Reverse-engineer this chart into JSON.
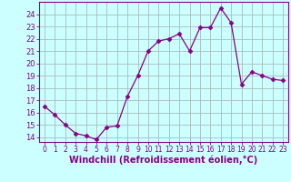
{
  "x": [
    0,
    1,
    2,
    3,
    4,
    5,
    6,
    7,
    8,
    9,
    10,
    11,
    12,
    13,
    14,
    15,
    16,
    17,
    18,
    19,
    20,
    21,
    22,
    23
  ],
  "y": [
    16.5,
    15.8,
    15.0,
    14.3,
    14.1,
    13.8,
    14.8,
    14.9,
    17.3,
    19.0,
    21.0,
    21.8,
    22.0,
    22.4,
    21.0,
    22.9,
    22.9,
    24.5,
    23.3,
    18.3,
    19.3,
    19.0,
    18.7,
    18.6
  ],
  "line_color": "#880088",
  "marker": "D",
  "marker_size": 2.5,
  "bg_color": "#ccffff",
  "grid_color": "#aabbbb",
  "xlabel": "Windchill (Refroidissement éolien,°C)",
  "xlabel_fontsize": 7,
  "ylabel_ticks": [
    14,
    15,
    16,
    17,
    18,
    19,
    20,
    21,
    22,
    23,
    24
  ],
  "xtick_labels": [
    "0",
    "1",
    "2",
    "3",
    "4",
    "5",
    "6",
    "7",
    "8",
    "9",
    "10",
    "11",
    "12",
    "13",
    "14",
    "15",
    "16",
    "17",
    "18",
    "19",
    "20",
    "21",
    "22",
    "23"
  ],
  "ylim": [
    13.6,
    25.0
  ],
  "xlim": [
    -0.5,
    23.5
  ],
  "ytick_fontsize": 6,
  "xtick_fontsize": 5.5
}
